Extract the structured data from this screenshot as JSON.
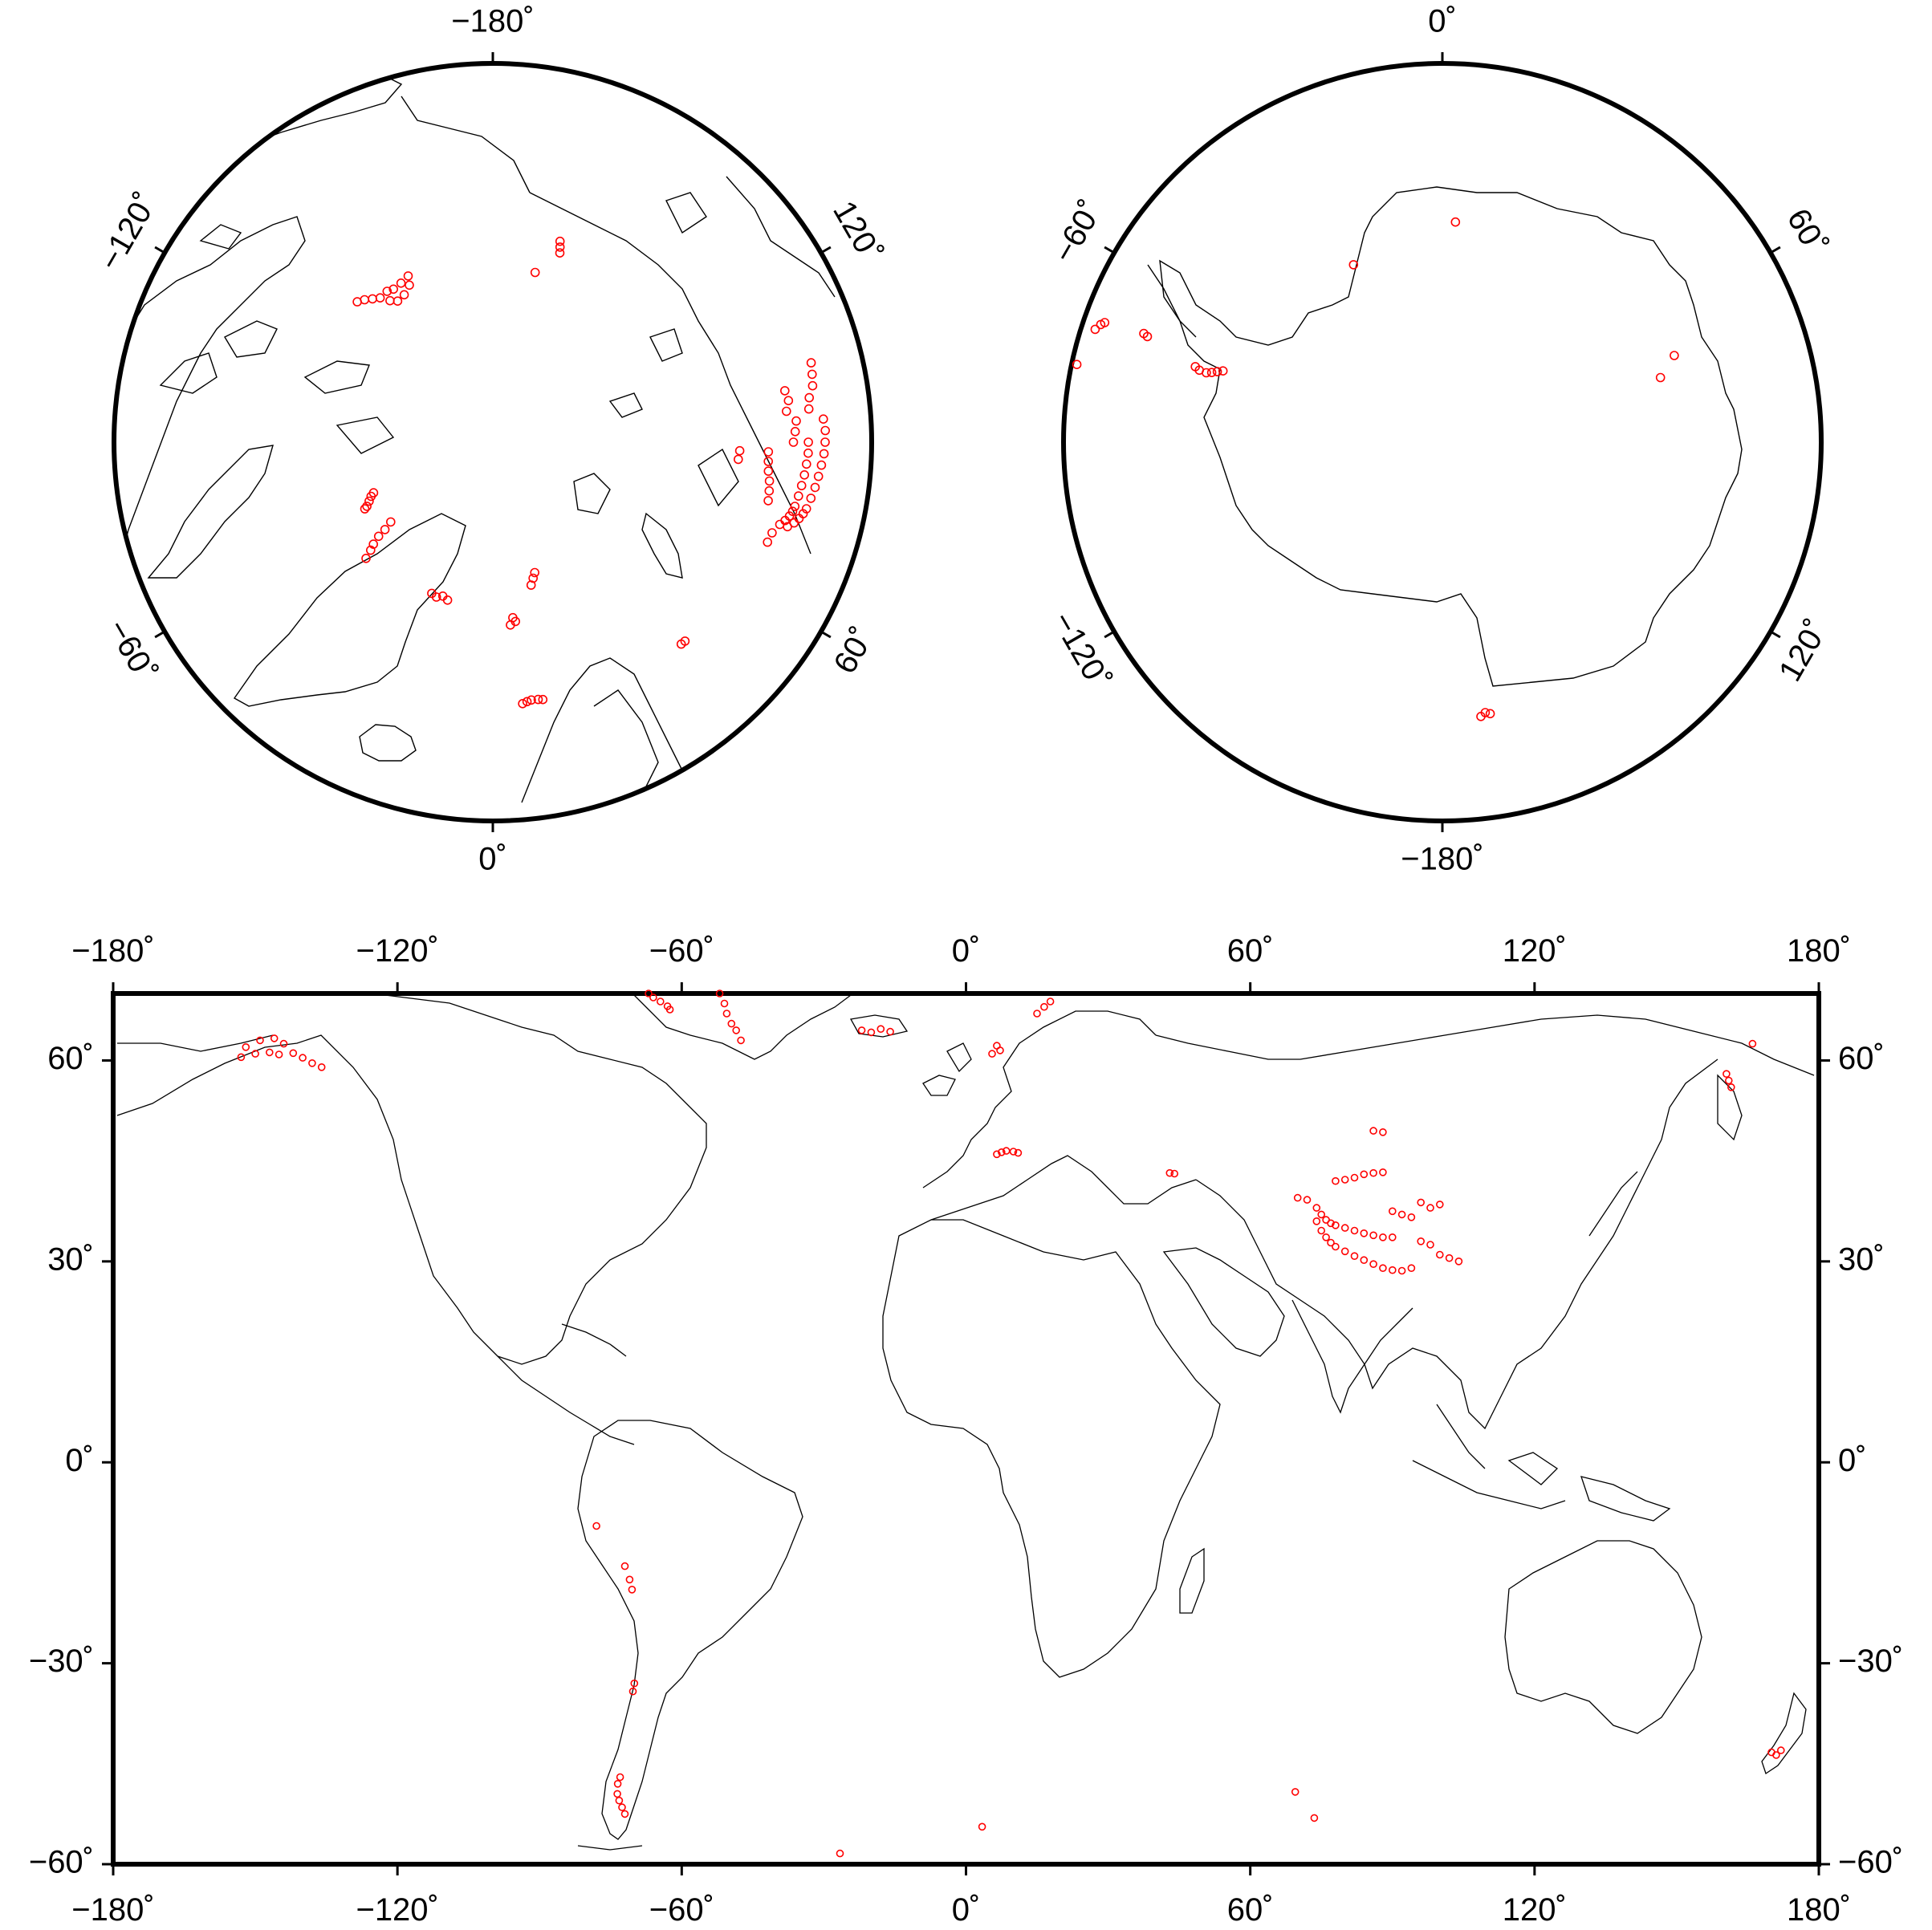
{
  "figure": {
    "north_polar_map": {
      "projection": "orthographic",
      "center": "north-pole",
      "lon_labels": [
        {
          "lon": -180,
          "text": "−180˚"
        },
        {
          "lon": -120,
          "text": "−120˚"
        },
        {
          "lon": 120,
          "text": "120˚"
        },
        {
          "lon": -60,
          "text": "−60˚"
        },
        {
          "lon": 60,
          "text": "60˚"
        },
        {
          "lon": 0,
          "text": "0˚"
        }
      ]
    },
    "south_polar_map": {
      "projection": "orthographic",
      "center": "south-pole",
      "lon_labels": [
        {
          "lon": 0,
          "text": "0˚"
        },
        {
          "lon": -60,
          "text": "−60˚"
        },
        {
          "lon": 60,
          "text": "60˚"
        },
        {
          "lon": -120,
          "text": "−120˚"
        },
        {
          "lon": 120,
          "text": "120˚"
        },
        {
          "lon": -180,
          "text": "−180˚"
        }
      ]
    },
    "world_map": {
      "projection": "equirectangular",
      "x_range": [
        -180,
        180
      ],
      "y_range": [
        -60,
        70
      ],
      "x_ticks": [
        {
          "value": -180,
          "text": "−180˚"
        },
        {
          "value": -120,
          "text": "−120˚"
        },
        {
          "value": -60,
          "text": "−60˚"
        },
        {
          "value": 0,
          "text": "0˚"
        },
        {
          "value": 60,
          "text": "60˚"
        },
        {
          "value": 120,
          "text": "120˚"
        },
        {
          "value": 180,
          "text": "180˚"
        }
      ],
      "y_ticks": [
        {
          "value": 60,
          "text": "60˚"
        },
        {
          "value": 30,
          "text": "30˚"
        },
        {
          "value": 0,
          "text": "0˚"
        },
        {
          "value": -30,
          "text": "−30˚"
        },
        {
          "value": -60,
          "text": "−60˚"
        }
      ]
    },
    "colors": {
      "coastline": "#000000",
      "frame": "#000000",
      "points": "#ff0000"
    }
  },
  "chart_data": {
    "type": "scatter",
    "title": "",
    "xlabel": "",
    "ylabel": "",
    "marker": "open-circle",
    "series": [
      {
        "points": [
          [
            -150,
            61
          ],
          [
            -147,
            61.2
          ],
          [
            -145,
            60.9
          ],
          [
            -142,
            61.1
          ],
          [
            -140,
            60.4
          ],
          [
            -138,
            59.6
          ],
          [
            -136,
            59
          ],
          [
            -153,
            60.5
          ],
          [
            -152,
            62
          ],
          [
            -149,
            63
          ],
          [
            -146,
            63.3
          ],
          [
            -144,
            62.5
          ],
          [
            -52,
            70
          ],
          [
            -51,
            68.5
          ],
          [
            -50.5,
            67
          ],
          [
            -49.5,
            65.5
          ],
          [
            -48.5,
            64.5
          ],
          [
            -47.5,
            63
          ],
          [
            -67,
            70
          ],
          [
            -66,
            69.4
          ],
          [
            -64.5,
            68.8
          ],
          [
            -63,
            68.1
          ],
          [
            -62.5,
            67.6
          ],
          [
            -22,
            64.5
          ],
          [
            -20,
            64.2
          ],
          [
            -18,
            64.7
          ],
          [
            -16,
            64.3
          ],
          [
            5.5,
            61
          ],
          [
            6.5,
            62.2
          ],
          [
            7.2,
            61.5
          ],
          [
            15,
            67
          ],
          [
            16.5,
            68
          ],
          [
            17.8,
            68.8
          ],
          [
            6.5,
            46
          ],
          [
            7.5,
            46.3
          ],
          [
            8.5,
            46.5
          ],
          [
            10,
            46.4
          ],
          [
            11,
            46.2
          ],
          [
            43,
            43.2
          ],
          [
            44,
            43.1
          ],
          [
            70,
            39.5
          ],
          [
            72,
            39.2
          ],
          [
            74,
            38
          ],
          [
            75,
            37
          ],
          [
            76,
            36.2
          ],
          [
            77,
            35.7
          ],
          [
            78,
            35.4
          ],
          [
            80,
            35
          ],
          [
            82,
            34.6
          ],
          [
            84,
            34.2
          ],
          [
            86,
            33.9
          ],
          [
            88,
            33.6
          ],
          [
            90,
            33.6
          ],
          [
            74,
            36
          ],
          [
            75,
            34.6
          ],
          [
            76,
            33.6
          ],
          [
            77,
            32.8
          ],
          [
            78,
            32.2
          ],
          [
            80,
            31.5
          ],
          [
            82,
            30.8
          ],
          [
            84,
            30.2
          ],
          [
            86,
            29.6
          ],
          [
            88,
            29
          ],
          [
            90,
            28.7
          ],
          [
            92,
            28.6
          ],
          [
            94,
            29
          ],
          [
            78,
            42
          ],
          [
            80,
            42.2
          ],
          [
            82,
            42.5
          ],
          [
            84,
            43
          ],
          [
            86,
            43.2
          ],
          [
            88,
            43.3
          ],
          [
            86,
            49.5
          ],
          [
            88,
            49.3
          ],
          [
            90,
            37.5
          ],
          [
            92,
            37
          ],
          [
            94,
            36.6
          ],
          [
            96,
            38.8
          ],
          [
            98,
            38
          ],
          [
            100,
            38.5
          ],
          [
            100,
            31
          ],
          [
            102,
            30.5
          ],
          [
            104,
            30
          ],
          [
            96,
            33
          ],
          [
            98,
            32.5
          ],
          [
            160.5,
            58
          ],
          [
            161,
            57
          ],
          [
            161.5,
            56
          ],
          [
            -78,
            -9.5
          ],
          [
            -72,
            -15.5
          ],
          [
            -71,
            -17.5
          ],
          [
            -70.5,
            -19
          ],
          [
            -70,
            -33
          ],
          [
            -70.3,
            -34.2
          ],
          [
            -73,
            -47
          ],
          [
            -73.5,
            -48
          ],
          [
            -73.6,
            -49.5
          ],
          [
            -73.2,
            -50.5
          ],
          [
            -72.6,
            -51.5
          ],
          [
            -72,
            -52.5
          ],
          [
            170,
            -43.3
          ],
          [
            171,
            -43.7
          ],
          [
            172,
            -43
          ],
          [
            69.5,
            -49.2
          ],
          [
            73.5,
            -53.1
          ],
          [
            -26.6,
            -58.4
          ],
          [
            3.4,
            -54.4
          ],
          [
            166,
            62.5
          ]
        ]
      }
    ]
  }
}
